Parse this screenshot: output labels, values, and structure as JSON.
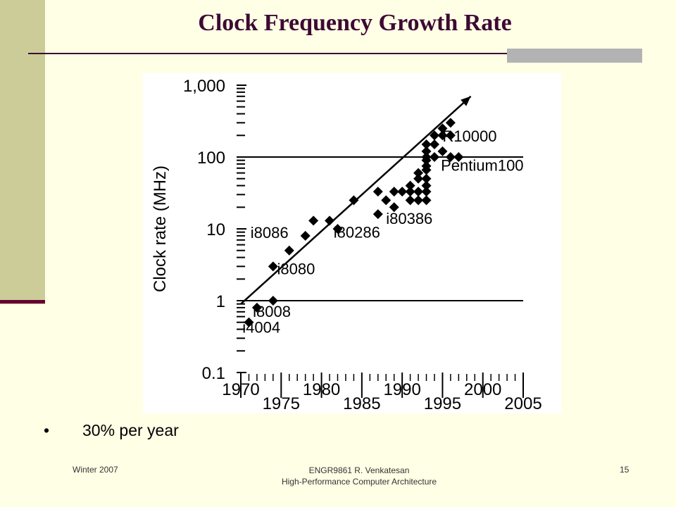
{
  "slide": {
    "title": "Clock Frequency Growth Rate",
    "bullet_symbol": "•",
    "bullet_text": "30% per year"
  },
  "footer": {
    "left": "Winter 2007",
    "center_line1": "ENGR9861    R. Venkatesan",
    "center_line2": "High-Performance Computer Architecture",
    "page_number": "15"
  },
  "colors": {
    "background": "#FFFFE6",
    "accent_band": "#CCCC99",
    "title_color": "#3D0A33",
    "marker": "#000000"
  },
  "chart_data": {
    "type": "scatter",
    "ylabel": "Clock rate (MHz)",
    "xlabel": "",
    "y_scale": "log",
    "xlim": [
      1970,
      2005
    ],
    "ylim": [
      0.1,
      1000
    ],
    "x_ticks_upper": [
      "1970",
      "1980",
      "1990",
      "2000"
    ],
    "x_ticks_lower": [
      "1975",
      "1985",
      "1995",
      "2005"
    ],
    "y_ticks": [
      {
        "value": 1000,
        "label": "1,000"
      },
      {
        "value": 100,
        "label": "100"
      },
      {
        "value": 10,
        "label": "10"
      },
      {
        "value": 1,
        "label": "1"
      },
      {
        "value": 0.1,
        "label": "0.1"
      }
    ],
    "reference_lines": [
      1,
      100
    ],
    "trend_line": {
      "x": [
        1970,
        1998.5
      ],
      "y": [
        0.9,
        700
      ]
    },
    "points": [
      [
        1971,
        0.5
      ],
      [
        1972,
        0.8
      ],
      [
        1974,
        1
      ],
      [
        1974,
        3
      ],
      [
        1976,
        5
      ],
      [
        1978,
        8
      ],
      [
        1979,
        13
      ],
      [
        1981,
        13
      ],
      [
        1982,
        10
      ],
      [
        1984,
        25
      ],
      [
        1987,
        16
      ],
      [
        1987,
        33
      ],
      [
        1988,
        25
      ],
      [
        1989,
        20
      ],
      [
        1989,
        33
      ],
      [
        1990,
        33
      ],
      [
        1991,
        25
      ],
      [
        1991,
        33
      ],
      [
        1991,
        40
      ],
      [
        1992,
        25
      ],
      [
        1992,
        33
      ],
      [
        1992,
        50
      ],
      [
        1992,
        60
      ],
      [
        1993,
        25
      ],
      [
        1993,
        33
      ],
      [
        1993,
        40
      ],
      [
        1993,
        50
      ],
      [
        1993,
        66
      ],
      [
        1993,
        75
      ],
      [
        1993,
        90
      ],
      [
        1993,
        100
      ],
      [
        1993,
        120
      ],
      [
        1993,
        150
      ],
      [
        1994,
        100
      ],
      [
        1994,
        150
      ],
      [
        1994,
        200
      ],
      [
        1995,
        120
      ],
      [
        1995,
        200
      ],
      [
        1995,
        250
      ],
      [
        1996,
        100
      ],
      [
        1996,
        200
      ],
      [
        1996,
        300
      ],
      [
        1997,
        100
      ]
    ],
    "annotations": [
      {
        "label": "i4004",
        "x": 1970.2,
        "y": 0.43
      },
      {
        "label": "i8008",
        "x": 1971.5,
        "y": 0.71
      },
      {
        "label": "i8080",
        "x": 1974.5,
        "y": 2.8
      },
      {
        "label": "i8086",
        "x": 1971.2,
        "y": 8.9
      },
      {
        "label": "i80286",
        "x": 1981.5,
        "y": 9.0
      },
      {
        "label": "i80386",
        "x": 1988.0,
        "y": 14.1
      },
      {
        "label": "R10000",
        "x": 1995.0,
        "y": 197
      },
      {
        "label": "Pentium100",
        "x": 1994.8,
        "y": 77
      }
    ]
  }
}
